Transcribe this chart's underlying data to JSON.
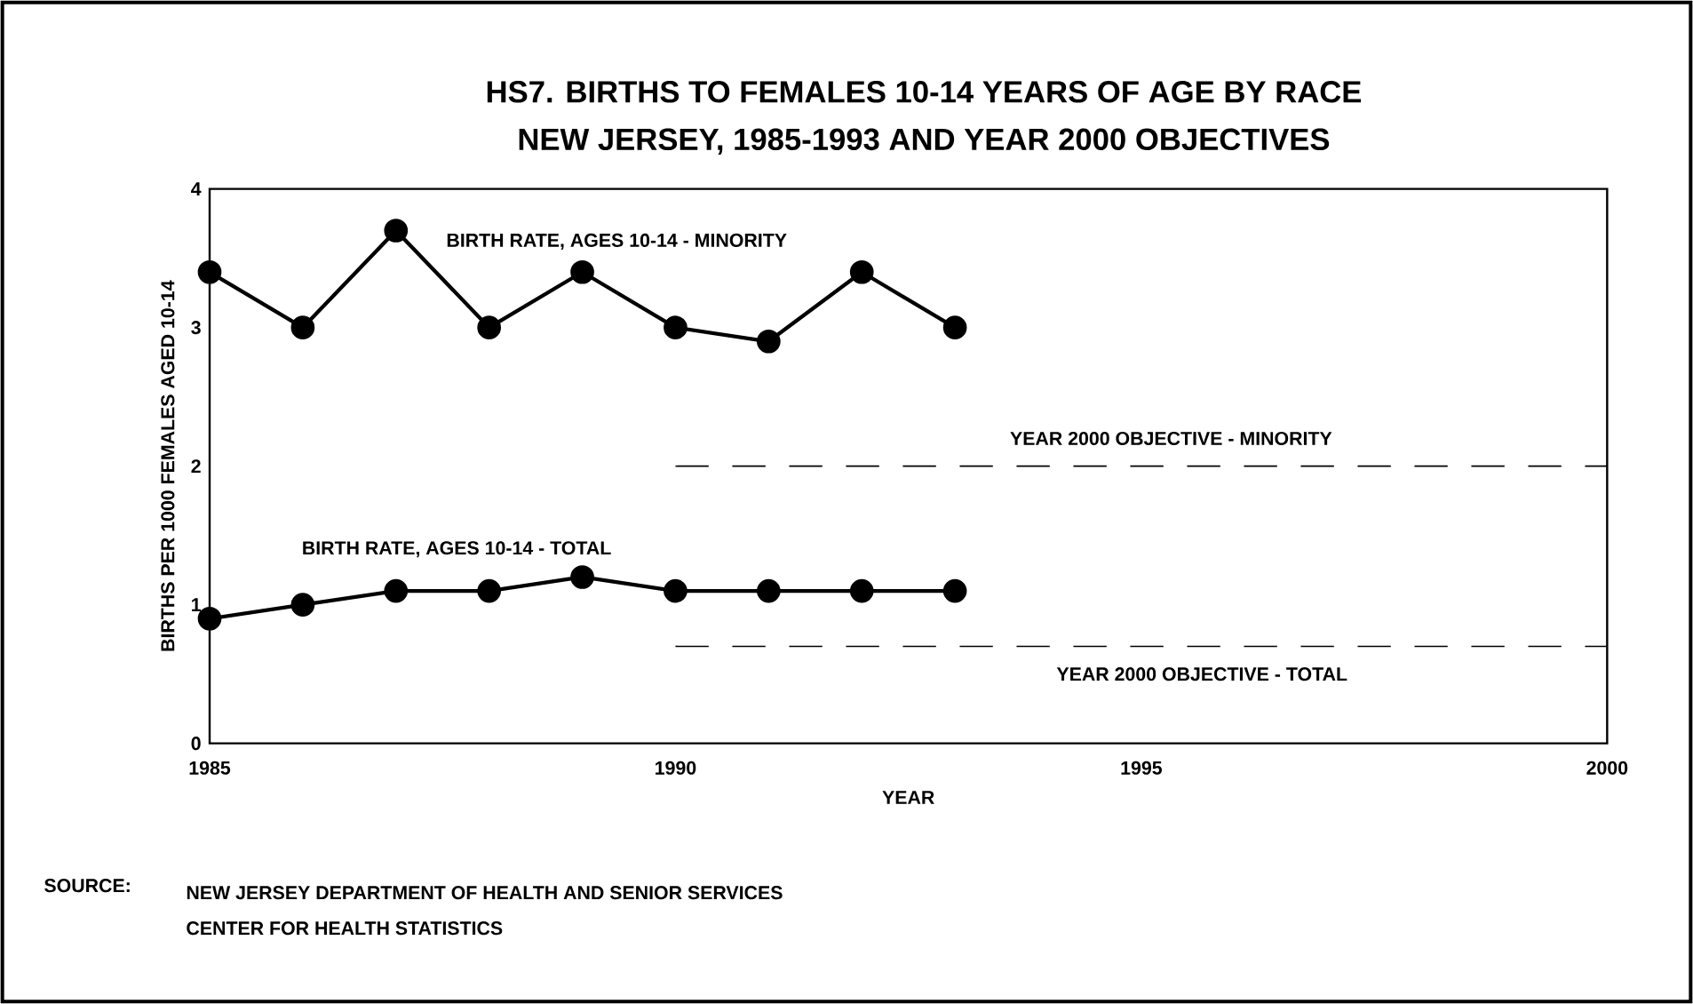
{
  "chart_data": {
    "type": "line",
    "title": "HS7. BIRTHS TO FEMALES 10-14 YEARS OF AGE BY RACE",
    "subtitle": "NEW JERSEY, 1985-1993 AND YEAR 2000 OBJECTIVES",
    "xlabel": "YEAR",
    "ylabel": "BIRTHS PER 1000 FEMALES AGED 10-14",
    "xlim": [
      1985,
      2000
    ],
    "xticks": [
      1985,
      1990,
      1995,
      2000
    ],
    "ylim": [
      0,
      4
    ],
    "yticks": [
      0,
      1,
      2,
      3,
      4
    ],
    "grid": false,
    "legend": false,
    "series": [
      {
        "name": "BIRTH RATE, AGES 10-14 - MINORITY",
        "color": "#000000",
        "marker": "circle",
        "line_style": "solid",
        "x": [
          1985,
          1986,
          1987,
          1988,
          1989,
          1990,
          1991,
          1992,
          1993
        ],
        "values": [
          3.4,
          3.0,
          3.7,
          3.0,
          3.4,
          3.0,
          2.9,
          3.4,
          3.0
        ]
      },
      {
        "name": "BIRTH RATE, AGES 10-14 - TOTAL",
        "color": "#000000",
        "marker": "circle",
        "line_style": "solid",
        "x": [
          1985,
          1986,
          1987,
          1988,
          1989,
          1990,
          1991,
          1992,
          1993
        ],
        "values": [
          0.9,
          1.0,
          1.1,
          1.1,
          1.2,
          1.1,
          1.1,
          1.1,
          1.1
        ]
      },
      {
        "name": "YEAR 2000 OBJECTIVE - MINORITY",
        "color": "#000000",
        "marker": "none",
        "line_style": "dashed",
        "x": [
          1990,
          2000
        ],
        "values": [
          2.0,
          2.0
        ]
      },
      {
        "name": "YEAR 2000 OBJECTIVE - TOTAL",
        "color": "#000000",
        "marker": "none",
        "line_style": "dashed",
        "x": [
          1990,
          2000
        ],
        "values": [
          0.7,
          0.7
        ]
      }
    ],
    "annotations": [
      "SOURCE:",
      "NEW JERSEY DEPARTMENT OF HEALTH AND SENIOR SERVICES",
      "CENTER FOR HEALTH STATISTICS"
    ]
  }
}
